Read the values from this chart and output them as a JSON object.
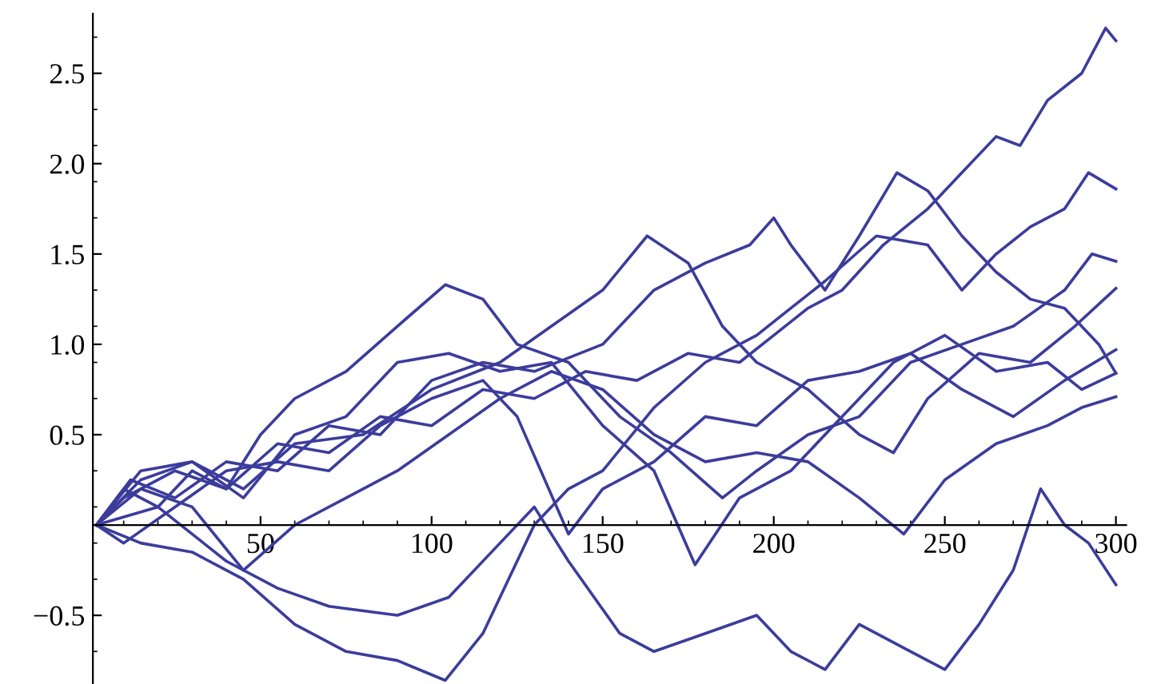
{
  "chart_data": {
    "type": "line",
    "xlim": [
      1,
      303
    ],
    "ylim": [
      -0.88,
      2.83
    ],
    "xticks": [
      50,
      100,
      150,
      200,
      250,
      300
    ],
    "yticks": [
      {
        "value": -0.5,
        "label": "−0.5"
      },
      {
        "value": 0.5,
        "label": "0.5"
      },
      {
        "value": 1,
        "label": "1.0"
      },
      {
        "value": 1.5,
        "label": "1.5"
      },
      {
        "value": 2,
        "label": "2.0"
      },
      {
        "value": 2.5,
        "label": "2.5"
      }
    ],
    "grid": false,
    "line_style": "solid",
    "marker": "none",
    "series": [
      {
        "color": "#3c3c9c",
        "x": [
          2,
          10,
          20,
          30,
          40,
          55,
          70,
          85,
          100,
          115,
          130,
          145,
          160,
          175,
          190,
          200,
          210,
          220,
          232,
          245,
          255,
          265,
          272,
          280,
          290,
          297,
          300
        ],
        "values": [
          0,
          0.2,
          0.1,
          0.3,
          0.2,
          0.45,
          0.4,
          0.6,
          0.55,
          0.75,
          0.7,
          0.85,
          0.8,
          0.95,
          0.9,
          1.05,
          1.2,
          1.3,
          1.55,
          1.75,
          1.95,
          2.15,
          2.1,
          2.35,
          2.5,
          2.75,
          2.68
        ]
      },
      {
        "color": "#3c3c9c",
        "x": [
          2,
          12,
          25,
          40,
          55,
          70,
          85,
          100,
          115,
          130,
          150,
          165,
          180,
          193,
          200,
          205,
          215,
          225,
          236,
          245,
          255,
          265,
          275,
          285,
          295,
          300
        ],
        "values": [
          0,
          0.25,
          0.15,
          0.35,
          0.3,
          0.55,
          0.5,
          0.8,
          0.9,
          0.85,
          1.0,
          1.3,
          1.45,
          1.55,
          1.7,
          1.55,
          1.3,
          1.6,
          1.95,
          1.85,
          1.6,
          1.4,
          1.25,
          1.2,
          1.0,
          0.84
        ]
      },
      {
        "color": "#3c3c9c",
        "x": [
          2,
          15,
          30,
          45,
          60,
          75,
          90,
          104,
          115,
          125,
          130,
          140,
          150,
          165,
          180,
          195,
          205,
          215,
          230,
          245,
          255,
          265,
          275,
          285,
          292,
          300
        ],
        "values": [
          0,
          -0.1,
          -0.15,
          -0.3,
          -0.55,
          -0.7,
          -0.75,
          -0.86,
          -0.6,
          -0.2,
          0.0,
          0.2,
          0.3,
          0.65,
          0.9,
          1.05,
          1.2,
          1.35,
          1.6,
          1.55,
          1.3,
          1.5,
          1.65,
          1.75,
          1.95,
          1.86
        ]
      },
      {
        "color": "#3c3c9c",
        "x": [
          2,
          10,
          25,
          40,
          50,
          60,
          75,
          90,
          104,
          115,
          125,
          140,
          155,
          170,
          185,
          195,
          210,
          225,
          240,
          255,
          270,
          285,
          293,
          300
        ],
        "values": [
          0,
          0.15,
          0.3,
          0.2,
          0.5,
          0.7,
          0.85,
          1.1,
          1.33,
          1.25,
          1.0,
          0.9,
          0.6,
          0.4,
          0.15,
          0.3,
          0.5,
          0.6,
          0.9,
          1.0,
          1.1,
          1.3,
          1.5,
          1.46
        ]
      },
      {
        "color": "#3c3c9c",
        "x": [
          2,
          15,
          30,
          45,
          60,
          80,
          100,
          120,
          135,
          150,
          163,
          175,
          185,
          195,
          210,
          225,
          235,
          245,
          260,
          275,
          288,
          300
        ],
        "values": [
          0,
          0.3,
          0.35,
          0.2,
          0.45,
          0.5,
          0.75,
          0.9,
          1.1,
          1.3,
          1.6,
          1.45,
          1.1,
          0.9,
          0.75,
          0.5,
          0.4,
          0.7,
          0.95,
          0.9,
          1.1,
          1.31
        ]
      },
      {
        "color": "#3c3c9c",
        "x": [
          2,
          10,
          25,
          40,
          55,
          70,
          85,
          100,
          115,
          125,
          140,
          150,
          165,
          180,
          195,
          210,
          225,
          240,
          255,
          270,
          285,
          300
        ],
        "values": [
          0,
          -0.1,
          0.1,
          0.3,
          0.35,
          0.3,
          0.55,
          0.7,
          0.8,
          0.6,
          -0.05,
          0.2,
          0.35,
          0.6,
          0.55,
          0.8,
          0.85,
          0.95,
          0.75,
          0.6,
          0.8,
          0.97
        ]
      },
      {
        "color": "#3c3c9c",
        "x": [
          2,
          15,
          30,
          45,
          60,
          75,
          90,
          105,
          120,
          135,
          150,
          165,
          177,
          190,
          205,
          220,
          235,
          250,
          265,
          280,
          290,
          300
        ],
        "values": [
          0,
          0.25,
          0.35,
          0.15,
          0.5,
          0.6,
          0.9,
          0.95,
          0.85,
          0.9,
          0.55,
          0.3,
          -0.22,
          0.15,
          0.3,
          0.6,
          0.9,
          1.05,
          0.85,
          0.9,
          0.75,
          0.84
        ]
      },
      {
        "color": "#3c3c9c",
        "x": [
          2,
          15,
          30,
          45,
          60,
          75,
          90,
          105,
          120,
          135,
          150,
          165,
          180,
          195,
          210,
          225,
          238,
          250,
          265,
          280,
          290,
          300
        ],
        "values": [
          0,
          0.2,
          0.1,
          -0.25,
          0.0,
          0.15,
          0.3,
          0.5,
          0.7,
          0.85,
          0.75,
          0.5,
          0.35,
          0.4,
          0.35,
          0.15,
          -0.05,
          0.25,
          0.45,
          0.55,
          0.65,
          0.71
        ]
      },
      {
        "color": "#3c3c9c",
        "x": [
          2,
          20,
          40,
          55,
          70,
          90,
          105,
          120,
          130,
          140,
          155,
          165,
          180,
          195,
          205,
          215,
          225,
          240,
          250,
          260,
          270,
          278,
          285,
          292,
          300
        ],
        "values": [
          0,
          0.1,
          -0.2,
          -0.35,
          -0.45,
          -0.5,
          -0.4,
          -0.1,
          0.1,
          -0.2,
          -0.6,
          -0.7,
          -0.6,
          -0.5,
          -0.7,
          -0.8,
          -0.55,
          -0.7,
          -0.8,
          -0.55,
          -0.25,
          0.2,
          0.0,
          -0.1,
          -0.33
        ]
      }
    ]
  }
}
